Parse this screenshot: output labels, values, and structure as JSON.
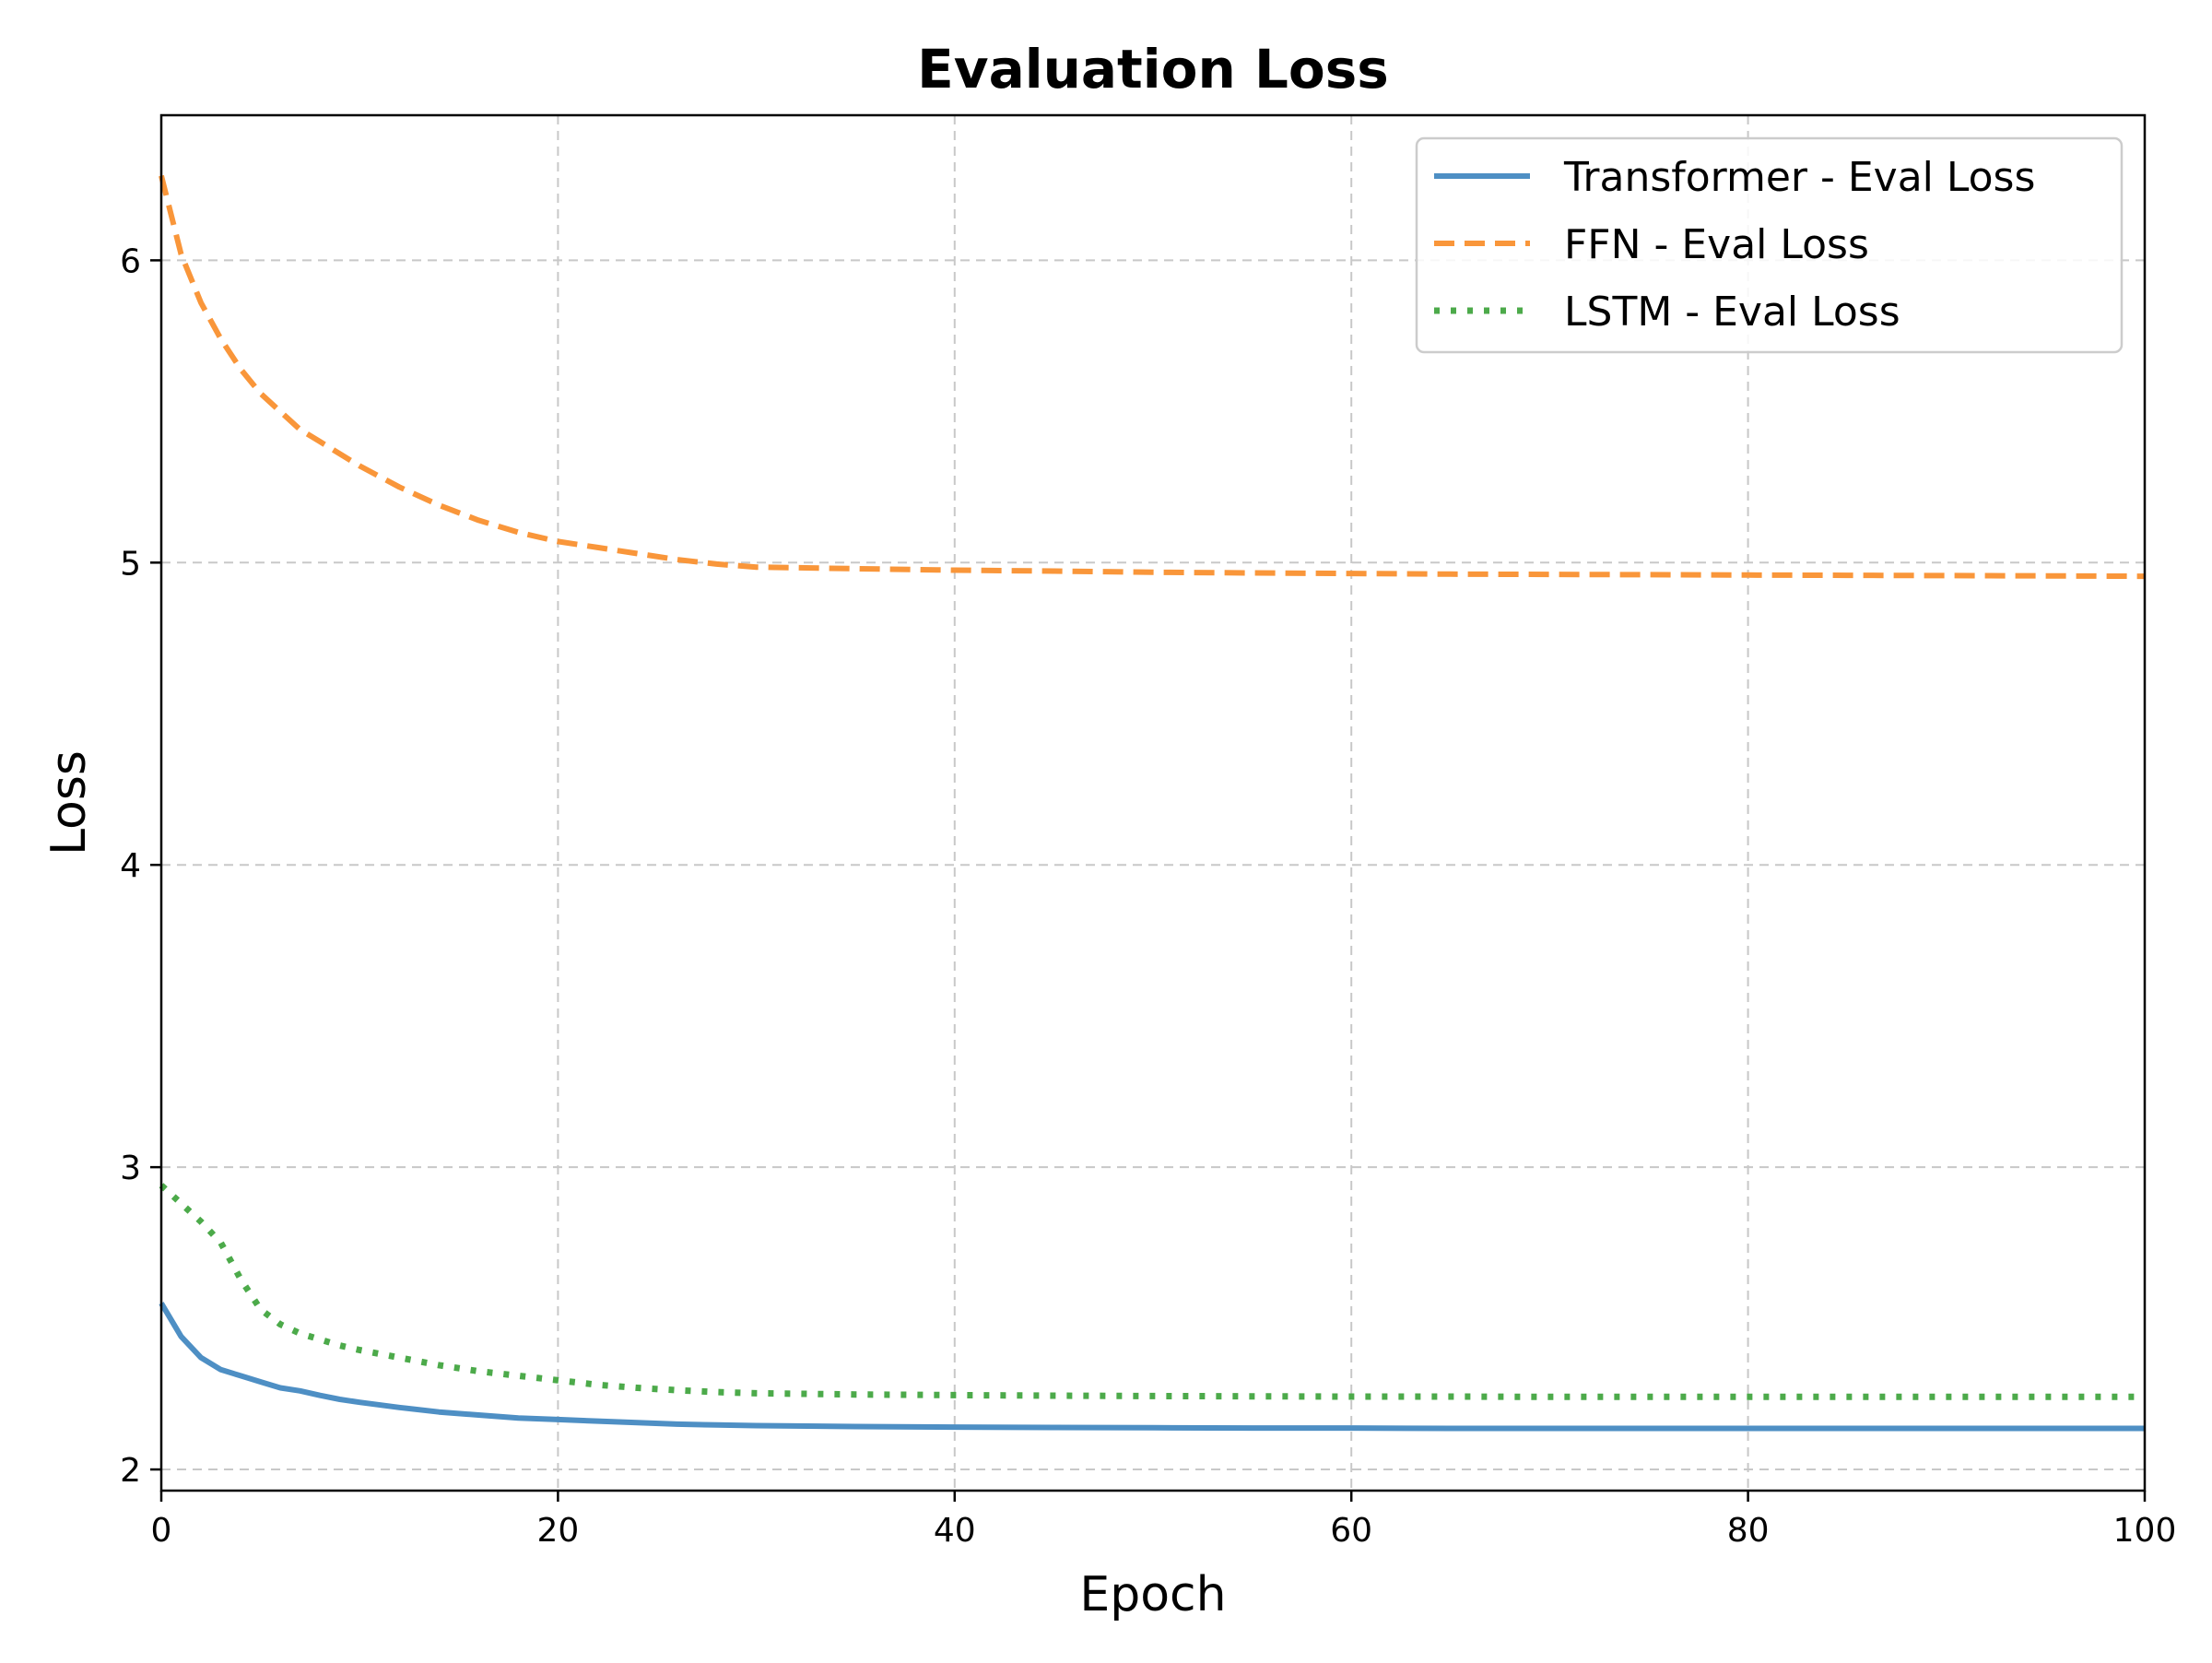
{
  "chart_data": {
    "type": "line",
    "title": "Evaluation Loss",
    "xlabel": "Epoch",
    "ylabel": "Loss",
    "xlim": [
      0,
      100
    ],
    "ylim": [
      1.93,
      6.48
    ],
    "xticks": [
      0,
      20,
      40,
      60,
      80,
      100
    ],
    "yticks": [
      2,
      3,
      4,
      5,
      6
    ],
    "grid": true,
    "legend_position": "top-right",
    "x": [
      0,
      1,
      2,
      3,
      4,
      5,
      6,
      7,
      8,
      9,
      10,
      12,
      14,
      16,
      18,
      20,
      22,
      24,
      26,
      28,
      30,
      35,
      40,
      45,
      50,
      55,
      60,
      65,
      70,
      75,
      80,
      85,
      90,
      95,
      100
    ],
    "series": [
      {
        "name": "Transformer - Eval Loss",
        "color": "#4e8fc4",
        "style": "solid",
        "values": [
          2.55,
          2.44,
          2.37,
          2.33,
          2.31,
          2.29,
          2.27,
          2.26,
          2.245,
          2.232,
          2.222,
          2.205,
          2.19,
          2.18,
          2.17,
          2.165,
          2.16,
          2.155,
          2.15,
          2.147,
          2.145,
          2.142,
          2.14,
          2.139,
          2.138,
          2.137,
          2.137,
          2.136,
          2.136,
          2.136,
          2.136,
          2.136,
          2.136,
          2.136,
          2.136
        ]
      },
      {
        "name": "FFN - Eval Loss",
        "color": "#f9963a",
        "style": "dashed",
        "values": [
          6.28,
          6.02,
          5.86,
          5.74,
          5.64,
          5.56,
          5.5,
          5.44,
          5.4,
          5.36,
          5.32,
          5.25,
          5.19,
          5.14,
          5.1,
          5.07,
          5.05,
          5.03,
          5.01,
          4.995,
          4.985,
          4.98,
          4.975,
          4.972,
          4.968,
          4.966,
          4.964,
          4.962,
          4.961,
          4.96,
          4.959,
          4.958,
          4.957,
          4.956,
          4.955
        ]
      },
      {
        "name": "LSTM - Eval Loss",
        "color": "#4caa4a",
        "style": "dotted",
        "values": [
          2.94,
          2.88,
          2.82,
          2.75,
          2.63,
          2.53,
          2.48,
          2.45,
          2.43,
          2.41,
          2.395,
          2.37,
          2.345,
          2.325,
          2.31,
          2.295,
          2.28,
          2.27,
          2.262,
          2.256,
          2.252,
          2.248,
          2.246,
          2.244,
          2.243,
          2.242,
          2.241,
          2.241,
          2.24,
          2.24,
          2.24,
          2.24,
          2.24,
          2.24,
          2.24
        ]
      }
    ]
  }
}
